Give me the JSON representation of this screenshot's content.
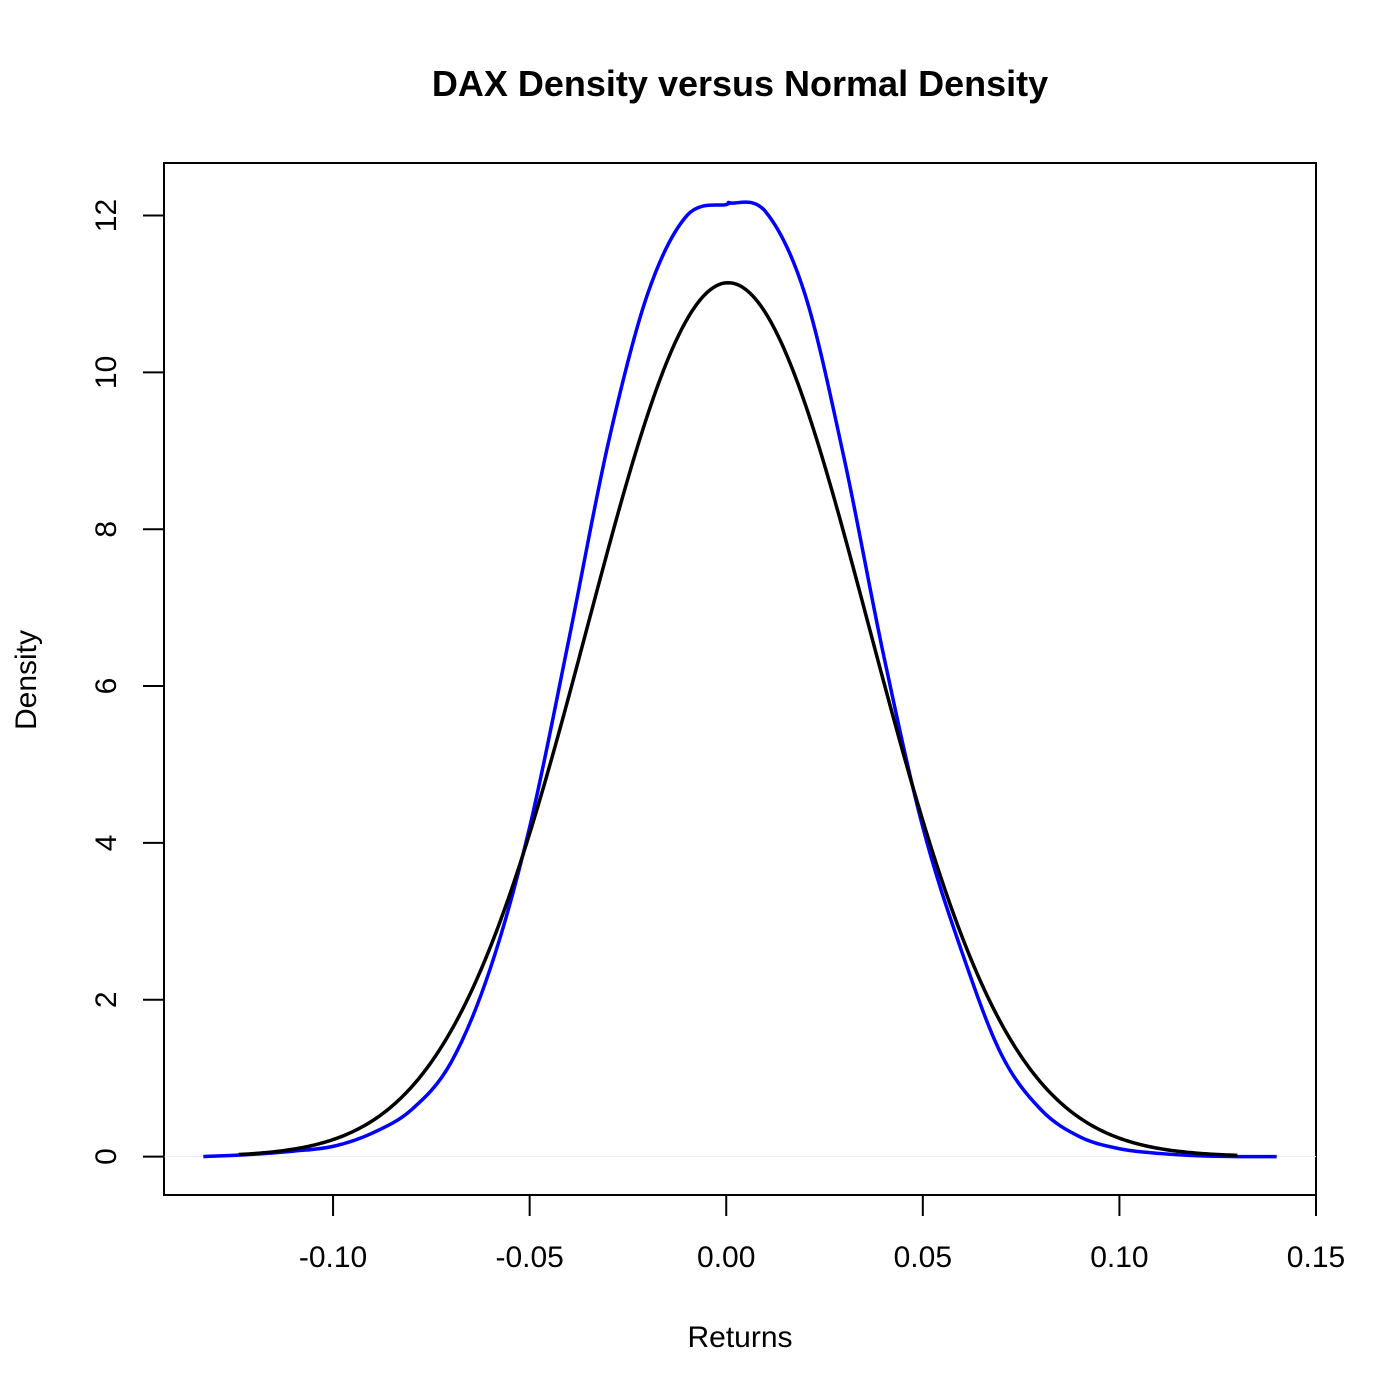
{
  "chart_data": {
    "type": "line",
    "title": "DAX Density versus Normal Density",
    "xlabel": "Returns",
    "ylabel": "Density",
    "xlim": [
      -0.143,
      0.15
    ],
    "ylim": [
      -0.49,
      12.67
    ],
    "x_ticks": [
      -0.1,
      -0.05,
      0.0,
      0.05,
      0.1,
      0.15
    ],
    "x_tick_labels": [
      "-0.10",
      "-0.05",
      "0.00",
      "0.05",
      "0.10",
      "0.15"
    ],
    "y_ticks": [
      0,
      2,
      4,
      6,
      8,
      10,
      12
    ],
    "y_tick_labels": [
      "0",
      "2",
      "4",
      "6",
      "8",
      "10",
      "12"
    ],
    "grid": false,
    "colors": {
      "kernel_density": "#0000ff",
      "normal_density": "#000000",
      "baseline": "#eeeeee"
    },
    "series": [
      {
        "color": "#0000ff",
        "x": [
          -0.133,
          -0.12,
          -0.11,
          -0.1,
          -0.09,
          -0.08,
          -0.07,
          -0.06,
          -0.05,
          -0.04,
          -0.03,
          -0.02,
          -0.01,
          0.0,
          0.0012,
          0.01,
          0.02,
          0.03,
          0.04,
          0.05,
          0.06,
          0.07,
          0.08,
          0.09,
          0.1,
          0.11,
          0.12,
          0.13,
          0.14
        ],
        "y": [
          0.0,
          0.03,
          0.07,
          0.13,
          0.3,
          0.6,
          1.2,
          2.4,
          4.2,
          6.6,
          9.1,
          11.0,
          12.0,
          12.14,
          12.16,
          12.05,
          11.0,
          8.9,
          6.4,
          4.2,
          2.6,
          1.3,
          0.6,
          0.25,
          0.1,
          0.04,
          0.01,
          0.0,
          0.0
        ]
      },
      {
        "color": "#000000",
        "normal_mean": 0.0005,
        "normal_sd": 0.0358,
        "x_range": [
          -0.124,
          0.13
        ]
      }
    ]
  }
}
